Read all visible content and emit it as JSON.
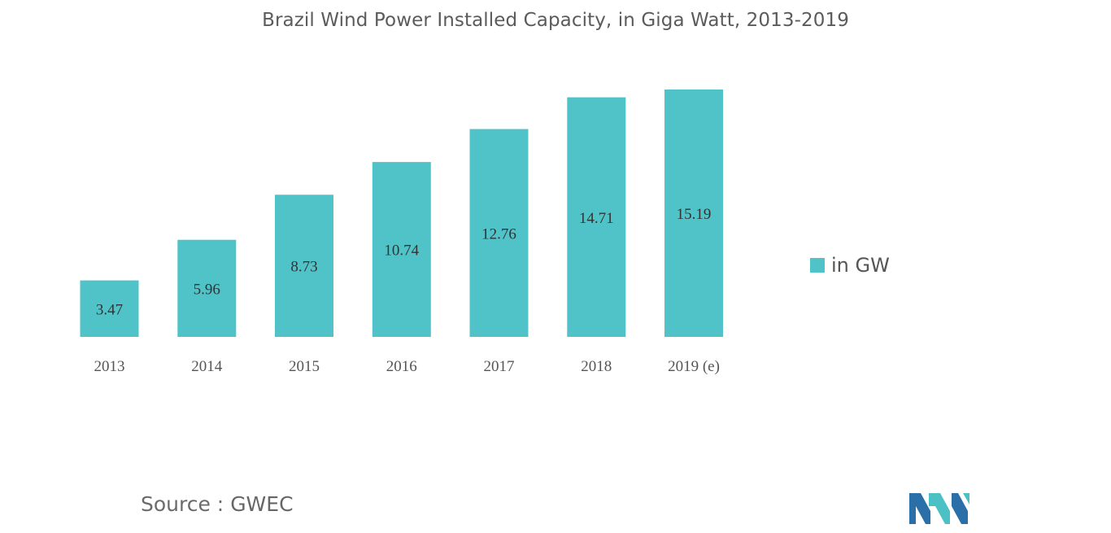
{
  "chart_data": {
    "type": "bar",
    "title": "Brazil Wind Power Installed Capacity, in Giga Watt, 2013-2019",
    "categories": [
      "2013",
      "2014",
      "2015",
      "2016",
      "2017",
      "2018",
      "2019 (e)"
    ],
    "series": [
      {
        "name": "in GW",
        "values": [
          3.47,
          5.96,
          8.73,
          10.74,
          12.76,
          14.71,
          15.19
        ],
        "labels": [
          "3.47",
          "5.96",
          "8.73",
          "10.74",
          "12.76",
          "14.71",
          "15.19"
        ]
      }
    ],
    "xlabel": "",
    "ylabel": "",
    "ylim": [
      0,
      15.19
    ],
    "grid": false,
    "legend_position": "right",
    "bar_color": "#50c3c8"
  },
  "source": {
    "prefix": "Source :",
    "name": "GWEC"
  },
  "logo": {
    "name": "mordor-intelligence-logo",
    "colors": [
      "#2a6fa8",
      "#4bc1c6"
    ]
  }
}
